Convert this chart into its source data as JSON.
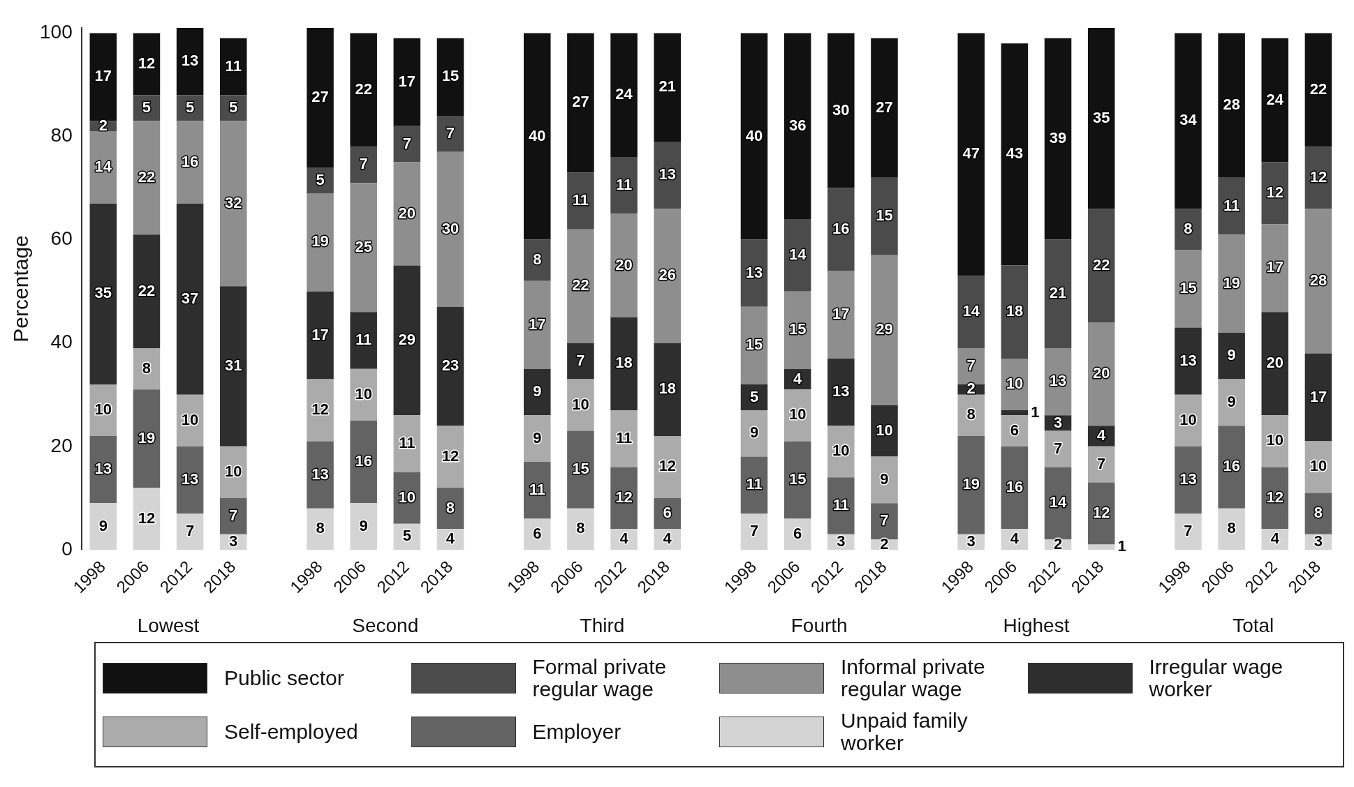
{
  "chart_data": {
    "type": "bar",
    "stacked": true,
    "ylabel": "Percentage",
    "ylim": [
      0,
      101
    ],
    "yticks": [
      0,
      20,
      40,
      60,
      80,
      100
    ],
    "grid": false,
    "legend": "bottom",
    "data_labels": true,
    "categories": [
      "1998",
      "2006",
      "2012",
      "2018",
      null,
      "1998",
      "2006",
      "2012",
      "2018",
      null,
      "1998",
      "2006",
      "2012",
      "2018",
      null,
      "1998",
      "2006",
      "2012",
      "2018",
      null,
      "1998",
      "2006",
      "2012",
      "2018",
      null,
      "1998",
      "2006",
      "2012",
      "2018"
    ],
    "annotations": [
      "Lowest",
      "Second",
      "Third",
      "Fourth",
      "Highest",
      "Total"
    ],
    "series": [
      {
        "name": "Unpaid family worker",
        "color": "#d4d4d4",
        "values": [
          9,
          12,
          7,
          3,
          null,
          8,
          9,
          5,
          4,
          null,
          6,
          8,
          4,
          4,
          null,
          7,
          6,
          3,
          2,
          null,
          3,
          4,
          2,
          1,
          null,
          7,
          8,
          4,
          3
        ]
      },
      {
        "name": "Employer",
        "color": "#636363",
        "values": [
          13,
          19,
          13,
          7,
          null,
          13,
          16,
          10,
          8,
          null,
          11,
          15,
          12,
          6,
          null,
          11,
          15,
          11,
          7,
          null,
          19,
          16,
          14,
          12,
          null,
          13,
          16,
          12,
          8
        ]
      },
      {
        "name": "Self-employed",
        "color": "#ababab",
        "values": [
          10,
          8,
          10,
          10,
          null,
          12,
          10,
          11,
          12,
          null,
          9,
          10,
          11,
          12,
          null,
          9,
          10,
          10,
          9,
          null,
          8,
          6,
          7,
          7,
          null,
          10,
          9,
          10,
          10
        ]
      },
      {
        "name": "Irregular wage worker",
        "color": "#2e2e2e",
        "values": [
          35,
          22,
          37,
          31,
          null,
          17,
          11,
          29,
          23,
          null,
          9,
          7,
          18,
          18,
          null,
          5,
          4,
          13,
          10,
          null,
          2,
          1,
          3,
          4,
          null,
          13,
          9,
          20,
          17
        ]
      },
      {
        "name": "Informal private regular wage",
        "color": "#8e8e8e",
        "values": [
          14,
          22,
          16,
          32,
          null,
          19,
          25,
          20,
          30,
          null,
          17,
          22,
          20,
          26,
          null,
          15,
          15,
          17,
          29,
          null,
          7,
          10,
          13,
          20,
          null,
          15,
          19,
          17,
          28
        ]
      },
      {
        "name": "Formal private regular wage",
        "color": "#4b4b4b",
        "values": [
          2,
          5,
          5,
          5,
          null,
          5,
          7,
          7,
          7,
          null,
          8,
          11,
          11,
          13,
          null,
          13,
          14,
          16,
          15,
          null,
          14,
          18,
          21,
          22,
          null,
          8,
          11,
          12,
          12
        ]
      },
      {
        "name": "Public sector",
        "color": "#111111",
        "values": [
          17,
          12,
          13,
          11,
          null,
          27,
          22,
          17,
          15,
          null,
          40,
          27,
          24,
          21,
          null,
          40,
          36,
          30,
          27,
          null,
          47,
          43,
          39,
          35,
          null,
          34,
          28,
          24,
          22
        ]
      }
    ]
  }
}
